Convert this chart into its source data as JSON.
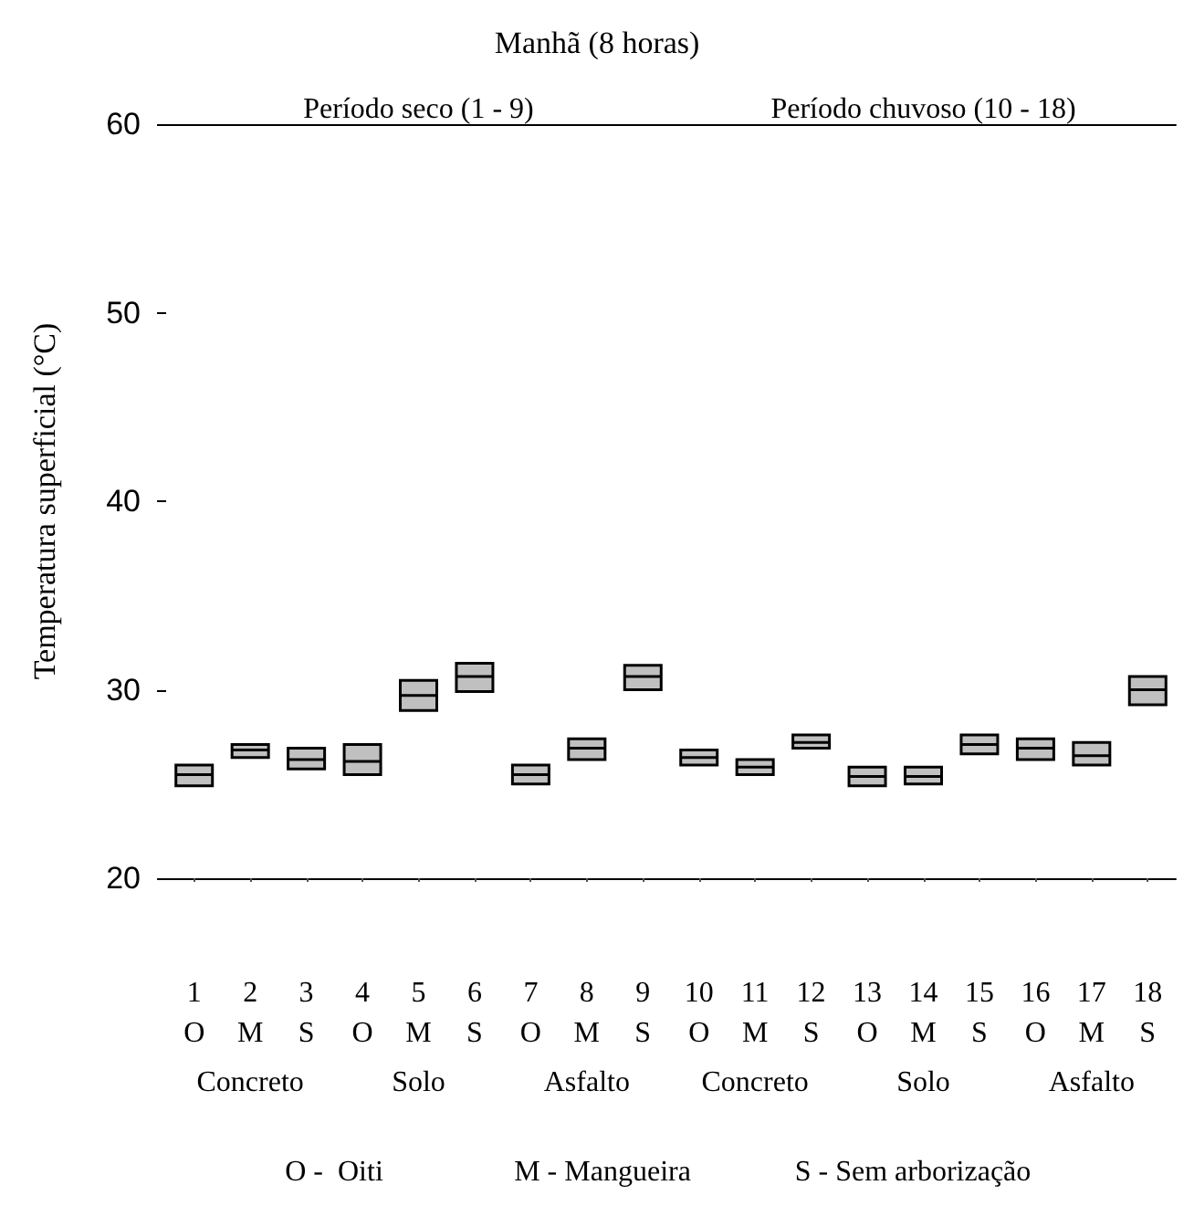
{
  "chart_data": {
    "type": "box",
    "title": "Manhã (8 horas)",
    "ylabel": "Temperatura superficial (°C)",
    "categories": [
      "1\nO",
      "2\nM",
      "3\nS",
      "4\nO",
      "5\nM",
      "6\nS",
      "7\nO",
      "8\nM",
      "9\nS",
      "10\nO",
      "11\nM",
      "12\nS",
      "13\nO",
      "14\nM",
      "15\nS",
      "16\nO",
      "17\nM",
      "18\nS"
    ],
    "color": "#c0c0c0",
    "boxes": [
      {
        "low": 24.9,
        "q1": 24.9,
        "median": 25.5,
        "q3": 26.0,
        "high": 26.0
      },
      {
        "low": 26.4,
        "q1": 26.4,
        "median": 26.8,
        "q3": 27.1,
        "high": 27.1
      },
      {
        "low": 25.8,
        "q1": 25.8,
        "median": 26.3,
        "q3": 26.9,
        "high": 26.9
      },
      {
        "low": 25.5,
        "q1": 25.5,
        "median": 26.2,
        "q3": 27.1,
        "high": 27.1
      },
      {
        "low": 28.9,
        "q1": 28.9,
        "median": 29.7,
        "q3": 30.5,
        "high": 30.5
      },
      {
        "low": 29.9,
        "q1": 29.9,
        "median": 30.7,
        "q3": 31.4,
        "high": 31.4
      },
      {
        "low": 25.0,
        "q1": 25.0,
        "median": 25.5,
        "q3": 26.0,
        "high": 26.0
      },
      {
        "low": 26.3,
        "q1": 26.3,
        "median": 26.9,
        "q3": 27.4,
        "high": 27.4
      },
      {
        "low": 30.0,
        "q1": 30.0,
        "median": 30.7,
        "q3": 31.3,
        "high": 31.3
      },
      {
        "low": 26.0,
        "q1": 26.0,
        "median": 26.4,
        "q3": 26.8,
        "high": 26.8
      },
      {
        "low": 25.5,
        "q1": 25.5,
        "median": 25.9,
        "q3": 26.3,
        "high": 26.3
      },
      {
        "low": 26.9,
        "q1": 26.9,
        "median": 27.2,
        "q3": 27.6,
        "high": 27.6
      },
      {
        "low": 24.9,
        "q1": 24.9,
        "median": 25.4,
        "q3": 25.9,
        "high": 25.9
      },
      {
        "low": 25.0,
        "q1": 25.0,
        "median": 25.4,
        "q3": 25.9,
        "high": 25.9
      },
      {
        "low": 26.6,
        "q1": 26.6,
        "median": 27.1,
        "q3": 27.6,
        "high": 27.6
      },
      {
        "low": 26.3,
        "q1": 26.3,
        "median": 26.9,
        "q3": 27.4,
        "high": 27.4
      },
      {
        "low": 26.0,
        "q1": 26.0,
        "median": 26.5,
        "q3": 27.2,
        "high": 27.2
      },
      {
        "low": 29.2,
        "q1": 29.2,
        "median": 30.0,
        "q3": 30.7,
        "high": 30.7
      }
    ],
    "ylim": [
      20,
      60
    ],
    "yticks": [
      20,
      30,
      40,
      50,
      60
    ],
    "annotations": [
      "Período seco (1 - 9)",
      "Período chuvoso (10 - 18)",
      "Concreto",
      "Solo",
      "Asfalto",
      "Concreto",
      "Solo",
      "Asfalto",
      "O -  Oiti",
      "M - Mangueira",
      "S - Sem arborização"
    ]
  }
}
